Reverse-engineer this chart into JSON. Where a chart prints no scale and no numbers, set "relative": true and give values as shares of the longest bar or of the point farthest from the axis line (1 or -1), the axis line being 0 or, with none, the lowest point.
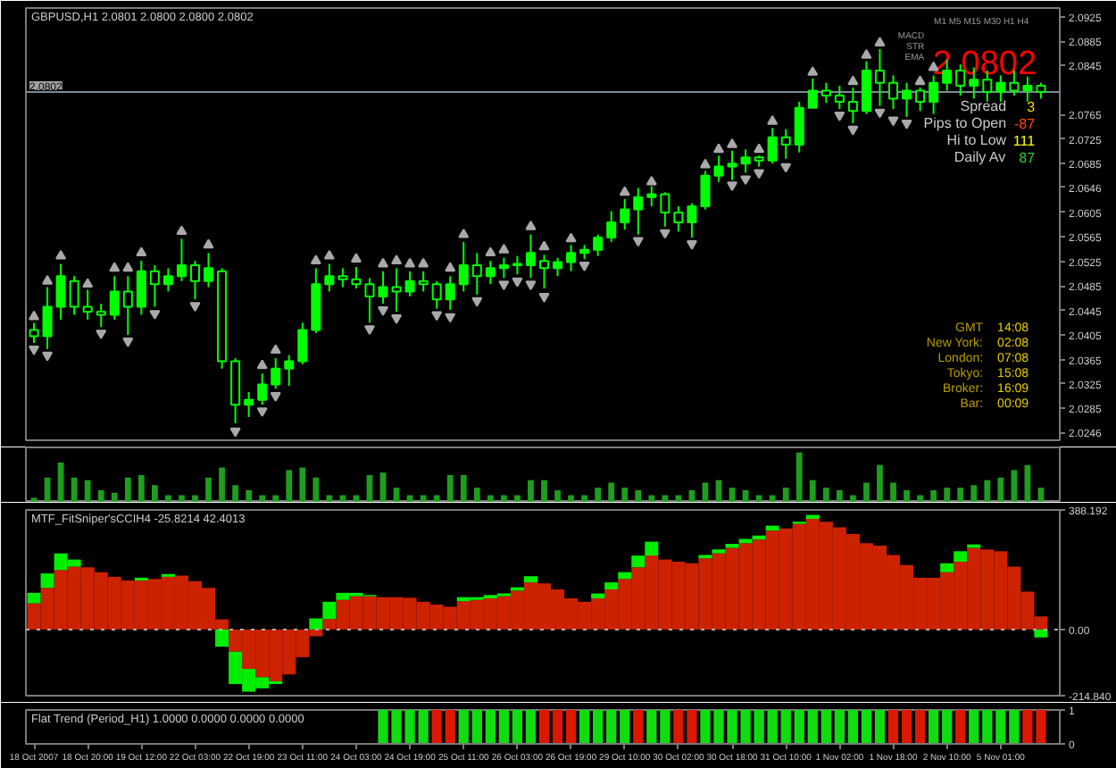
{
  "chart_data": [
    {
      "type": "candlestick",
      "title": "GBPUSD,H1  2.0801 2.0800 2.0800 2.0802",
      "categories": [
        null,
        null,
        null,
        null,
        null,
        null,
        null,
        null,
        null,
        null,
        null,
        null,
        null,
        null,
        null,
        null,
        null,
        null,
        null,
        null,
        null,
        null,
        null,
        null,
        null,
        null,
        null,
        null,
        null,
        null,
        null,
        null,
        null,
        null,
        null,
        null,
        null,
        null,
        null,
        null,
        null,
        null,
        null,
        null,
        null,
        null,
        null,
        null,
        null,
        null,
        null,
        null,
        null,
        null,
        null,
        null,
        null,
        null,
        null,
        null,
        null,
        null,
        null,
        null,
        null,
        null,
        null,
        null,
        null,
        null,
        null,
        null,
        null,
        null,
        null,
        null
      ],
      "ohlc": [
        [
          2.0413,
          2.0425,
          2.0392,
          2.0403
        ],
        [
          2.0403,
          2.0483,
          2.0382,
          2.0451
        ],
        [
          2.0451,
          2.0521,
          2.043,
          2.0501
        ],
        [
          2.0493,
          2.0501,
          2.0438,
          2.0451
        ],
        [
          2.0451,
          2.0479,
          2.043,
          2.0443
        ],
        [
          2.0443,
          2.0456,
          2.0418,
          2.0438
        ],
        [
          2.0438,
          2.0501,
          2.043,
          2.0476
        ],
        [
          2.0476,
          2.0501,
          2.0405,
          2.0451
        ],
        [
          2.0451,
          2.0526,
          2.0438,
          2.0509
        ],
        [
          2.0509,
          2.0519,
          2.0451,
          2.0488
        ],
        [
          2.0488,
          2.0514,
          2.0476,
          2.0501
        ],
        [
          2.0501,
          2.0562,
          2.0493,
          2.0519
        ],
        [
          2.0519,
          2.0526,
          2.0463,
          2.0493
        ],
        [
          2.0493,
          2.0539,
          2.0483,
          2.0514
        ],
        [
          2.0509,
          2.0514,
          2.035,
          2.0362
        ],
        [
          2.0362,
          2.0367,
          2.0261,
          2.0291
        ],
        [
          2.0291,
          2.0312,
          2.0271,
          2.0299
        ],
        [
          2.0299,
          2.0342,
          2.0291,
          2.0324
        ],
        [
          2.0324,
          2.0367,
          2.0317,
          2.035
        ],
        [
          2.035,
          2.0372,
          2.0322,
          2.0362
        ],
        [
          2.0362,
          2.0425,
          2.0357,
          2.0413
        ],
        [
          2.0413,
          2.0514,
          2.0408,
          2.0488
        ],
        [
          2.0488,
          2.0521,
          2.0476,
          2.0501
        ],
        [
          2.0501,
          2.0514,
          2.0483,
          2.0496
        ],
        [
          2.0496,
          2.0516,
          2.0481,
          2.0488
        ],
        [
          2.0488,
          2.0498,
          2.0425,
          2.0468
        ],
        [
          2.0468,
          2.0509,
          2.0456,
          2.0483
        ],
        [
          2.0483,
          2.0514,
          2.0443,
          2.0476
        ],
        [
          2.0476,
          2.0509,
          2.0468,
          2.0493
        ],
        [
          2.0493,
          2.0509,
          2.0476,
          2.0488
        ],
        [
          2.0488,
          2.0493,
          2.0448,
          2.0463
        ],
        [
          2.0463,
          2.0501,
          2.0446,
          2.0488
        ],
        [
          2.0488,
          2.0557,
          2.0476,
          2.0519
        ],
        [
          2.0519,
          2.0539,
          2.0471,
          2.0501
        ],
        [
          2.0501,
          2.0526,
          2.0488,
          2.0514
        ],
        [
          2.0514,
          2.0531,
          2.0498,
          2.0519
        ],
        [
          2.0519,
          2.0534,
          2.0504,
          2.0521
        ],
        [
          2.0519,
          2.0569,
          2.0498,
          2.0539
        ],
        [
          2.0526,
          2.0536,
          2.0481,
          2.0514
        ],
        [
          2.0514,
          2.0531,
          2.0501,
          2.0524
        ],
        [
          2.0524,
          2.0552,
          2.0509,
          2.0539
        ],
        [
          2.0539,
          2.0552,
          2.0529,
          2.0544
        ],
        [
          2.0544,
          2.0569,
          2.0534,
          2.0564
        ],
        [
          2.0564,
          2.0607,
          2.0557,
          2.0589
        ],
        [
          2.0589,
          2.0627,
          2.0577,
          2.061
        ],
        [
          2.061,
          2.0645,
          2.0569,
          2.063
        ],
        [
          2.063,
          2.0648,
          2.0615,
          2.0635
        ],
        [
          2.0635,
          2.0638,
          2.0582,
          2.0605
        ],
        [
          2.0605,
          2.0615,
          2.0574,
          2.0589
        ],
        [
          2.0589,
          2.062,
          2.0564,
          2.0615
        ],
        [
          2.0615,
          2.0673,
          2.061,
          2.0665
        ],
        [
          2.0665,
          2.0698,
          2.0655,
          2.068
        ],
        [
          2.068,
          2.0706,
          2.0658,
          2.0685
        ],
        [
          2.0685,
          2.0708,
          2.067,
          2.0695
        ],
        [
          2.0695,
          2.0698,
          2.068,
          2.069
        ],
        [
          2.069,
          2.0743,
          2.0685,
          2.0728
        ],
        [
          2.0728,
          2.0741,
          2.0693,
          2.0716
        ],
        [
          2.0716,
          2.0786,
          2.0703,
          2.0776
        ],
        [
          2.0776,
          2.0824,
          2.0776,
          2.0804
        ],
        [
          2.0804,
          2.0817,
          2.0784,
          2.0796
        ],
        [
          2.0796,
          2.0812,
          2.0774,
          2.0786
        ],
        [
          2.0786,
          2.0809,
          2.0751,
          2.0771
        ],
        [
          2.0771,
          2.0852,
          2.0766,
          2.0837
        ],
        [
          2.0837,
          2.0872,
          2.0779,
          2.0817
        ],
        [
          2.0817,
          2.0829,
          2.0774,
          2.0791
        ],
        [
          2.0791,
          2.0817,
          2.0761,
          2.0804
        ],
        [
          2.0804,
          2.0809,
          2.0771,
          2.0786
        ],
        [
          2.0786,
          2.0829,
          2.0766,
          2.0817
        ],
        [
          2.0817,
          2.0855,
          2.0804,
          2.0837
        ],
        [
          2.0837,
          2.0847,
          2.0796,
          2.0812
        ],
        [
          2.0812,
          2.0842,
          2.0791,
          2.0822
        ],
        [
          2.0822,
          2.0837,
          2.0786,
          2.0802
        ],
        [
          2.0802,
          2.0829,
          2.0786,
          2.0817
        ],
        [
          2.0817,
          2.0837,
          2.0796,
          2.0804
        ],
        [
          2.0804,
          2.0827,
          2.0786,
          2.0812
        ],
        [
          2.0812,
          2.0817,
          2.0791,
          2.0802
        ]
      ],
      "color": "#00ff00",
      "ylim": [
        2.0233,
        2.0939
      ],
      "yticks": [
        2.0925,
        2.0885,
        2.0845,
        2.0765,
        2.0725,
        2.0685,
        2.0646,
        2.0605,
        2.0565,
        2.0525,
        2.0485,
        2.0445,
        2.0405,
        2.0365,
        2.0325,
        2.0285,
        2.0246
      ],
      "tick_labels": "y",
      "ref_lines": [
        {
          "axis": "y",
          "value": 2.0802,
          "label": "2.0802",
          "color": "#7a8a9a"
        }
      ],
      "series": [
        {
          "type": "scatter",
          "marker": "triangle",
          "color": "#a9a9a9",
          "values": [
            2.0435,
            2.0493,
            2.0534,
            null,
            2.0488,
            null,
            2.0514,
            2.0514,
            2.0539,
            null,
            null,
            2.0574,
            null,
            2.0552,
            null,
            null,
            null,
            2.0355,
            2.038,
            null,
            null,
            2.0526,
            2.0534,
            null,
            2.0529,
            null,
            2.0521,
            2.0526,
            2.0521,
            2.0521,
            null,
            2.0514,
            2.0569,
            null,
            2.0539,
            2.0544,
            null,
            2.0582,
            2.0549,
            null,
            2.0562,
            null,
            null,
            null,
            2.0638,
            null,
            2.0655,
            null,
            null,
            null,
            2.0683,
            2.0708,
            2.0716,
            null,
            2.0708,
            2.0754,
            null,
            null,
            2.0834,
            null,
            null,
            2.0819,
            2.0862,
            2.0882,
            null,
            null,
            2.0819,
            2.0842,
            null,
            null,
            null,
            null,
            null,
            null,
            null,
            null
          ]
        },
        {
          "type": "scatter",
          "color": "#a9a9a9",
          "values": [
            2.0382,
            2.0372,
            null,
            null,
            null,
            2.0408,
            null,
            2.0395,
            null,
            2.044,
            null,
            null,
            2.0453,
            null,
            null,
            2.0248,
            null,
            2.0281,
            2.0306,
            null,
            null,
            null,
            null,
            null,
            null,
            2.0415,
            2.0446,
            2.0433,
            null,
            null,
            2.0438,
            2.0435,
            null,
            2.0461,
            null,
            2.0488,
            2.0493,
            2.0488,
            2.0468,
            null,
            null,
            2.0519,
            null,
            null,
            null,
            2.0559,
            null,
            2.0572,
            null,
            2.0554,
            null,
            null,
            2.065,
            2.066,
            2.067,
            null,
            2.068,
            null,
            null,
            null,
            2.0764,
            2.0741,
            null,
            2.0769,
            2.0756,
            2.0751,
            null,
            null,
            null,
            null,
            null,
            null,
            null,
            null,
            null,
            null
          ]
        }
      ],
      "annotations": [
        "M1 M5 M15 M30 H1 H4",
        "MACD",
        "STR",
        "EMA",
        "2.0802",
        "Spread",
        "3",
        "Pips to Open",
        "-87",
        "Hi to Low",
        "111",
        "Daily Av",
        "87",
        "GMT",
        "14:08",
        "New York:",
        "02:08",
        "London:",
        "07:08",
        "Tokyo:",
        "15:08",
        "Broker:",
        "16:09",
        "Bar:",
        "00:09"
      ]
    },
    {
      "type": "bar",
      "relative": true,
      "tick_labels": false,
      "color": "#1e9e1e",
      "categories": [
        null,
        null,
        null,
        null,
        null,
        null,
        null,
        null,
        null,
        null,
        null,
        null,
        null,
        null,
        null,
        null,
        null,
        null,
        null,
        null,
        null,
        null,
        null,
        null,
        null,
        null,
        null,
        null,
        null,
        null,
        null,
        null,
        null,
        null,
        null,
        null,
        null,
        null,
        null,
        null,
        null,
        null,
        null,
        null,
        null,
        null,
        null,
        null,
        null,
        null,
        null,
        null,
        null,
        null,
        null,
        null,
        null,
        null,
        null,
        null,
        null,
        null,
        null,
        null,
        null,
        null,
        null,
        null,
        null,
        null,
        null,
        null,
        null,
        null,
        null,
        null
      ],
      "values": [
        0.1,
        0.5,
        0.8,
        0.5,
        0.45,
        0.25,
        0.2,
        0.5,
        0.55,
        0.35,
        0.15,
        0.15,
        0.15,
        0.5,
        0.7,
        0.35,
        0.25,
        0.15,
        0.15,
        0.65,
        0.7,
        0.5,
        0.15,
        0.15,
        0.15,
        0.55,
        0.6,
        0.3,
        0.15,
        0.15,
        0.15,
        0.55,
        0.55,
        0.3,
        0.15,
        0.15,
        0.15,
        0.45,
        0.45,
        0.25,
        0.15,
        0.15,
        0.3,
        0.4,
        0.3,
        0.25,
        0.15,
        0.15,
        0.15,
        0.25,
        0.4,
        0.45,
        0.3,
        0.25,
        0.15,
        0.15,
        0.3,
        1,
        0.45,
        0.3,
        0.25,
        0.15,
        0.4,
        0.75,
        0.4,
        0.25,
        0.15,
        0.25,
        0.3,
        0.3,
        0.35,
        0.45,
        0.5,
        0.65,
        0.75,
        0.3
      ]
    },
    {
      "type": "bar",
      "stacked": true,
      "title": "MTF_FitSniper'sCCIH4  -25.8214 42.4013",
      "tick_labels": "y",
      "categories": [
        null,
        null,
        null,
        null,
        null,
        null,
        null,
        null,
        null,
        null,
        null,
        null,
        null,
        null,
        null,
        null,
        null,
        null,
        null,
        null,
        null,
        null,
        null,
        null,
        null,
        null,
        null,
        null,
        null,
        null,
        null,
        null,
        null,
        null,
        null,
        null,
        null,
        null,
        null,
        null,
        null,
        null,
        null,
        null,
        null,
        null,
        null,
        null,
        null,
        null,
        null,
        null,
        null,
        null,
        null,
        null,
        null,
        null,
        null,
        null,
        null,
        null,
        null,
        null,
        null,
        null,
        null,
        null,
        null,
        null,
        null,
        null,
        null,
        null,
        null,
        null
      ],
      "series": [
        {
          "color": "#cc2200",
          "values": [
            85,
            135,
            193,
            204,
            202,
            186,
            171,
            159,
            159,
            164,
            171,
            175,
            157,
            135,
            33,
            -72,
            -128,
            -155,
            -168,
            -146,
            -90,
            -22,
            34,
            96,
            108,
            108,
            105,
            105,
            103,
            90,
            81,
            74,
            92,
            96,
            101,
            108,
            126,
            153,
            150,
            130,
            101,
            90,
            101,
            130,
            164,
            202,
            240,
            227,
            220,
            215,
            231,
            247,
            265,
            280,
            292,
            321,
            328,
            343,
            359,
            350,
            332,
            310,
            280,
            272,
            242,
            209,
            168,
            168,
            186,
            220,
            265,
            260,
            254,
            204,
            123,
            42.4013
          ]
        },
        {
          "color": "#00ee00",
          "values": [
            34,
            47,
            54,
            23,
            null,
            null,
            null,
            null,
            9,
            null,
            9,
            null,
            null,
            null,
            -56,
            -105,
            -74,
            -36,
            -9,
            null,
            null,
            36,
            56,
            23,
            11,
            4,
            null,
            null,
            null,
            null,
            null,
            null,
            13,
            9,
            11,
            9,
            11,
            20,
            null,
            null,
            null,
            null,
            16,
            23,
            22,
            38,
            45,
            null,
            null,
            null,
            11,
            13,
            13,
            14,
            13,
            16,
            null,
            7,
            13,
            null,
            null,
            null,
            null,
            null,
            null,
            null,
            null,
            null,
            29,
            34,
            11,
            null,
            null,
            null,
            null,
            -25.8214
          ]
        }
      ],
      "ylim": [
        -214.84,
        388.192
      ],
      "yticks": [
        388.192,
        {
          "value": 0,
          "label": "0.00"
        },
        {
          "value": -214.84,
          "label": "-214.840"
        }
      ],
      "ref_lines": [
        {
          "axis": "y",
          "value": 0,
          "color": "#b0b0b0",
          "line_style": "dotted"
        }
      ]
    },
    {
      "type": "bar",
      "title": "Flat Trend (Period_H1) 1.0000 0.0000 0.0000 0.0000",
      "categories": [
        "18 Oct 2007",
        null,
        null,
        null,
        "18 Oct 20:00",
        null,
        null,
        null,
        "19 Oct 12:00",
        null,
        null,
        null,
        "22 Oct 03:00",
        null,
        null,
        null,
        "22 Oct 19:00",
        null,
        null,
        null,
        "23 Oct 11:00",
        null,
        null,
        null,
        "24 Oct 03:00",
        null,
        null,
        null,
        "24 Oct 19:00",
        null,
        null,
        null,
        "25 Oct 11:00",
        null,
        null,
        null,
        "26 Oct 03:00",
        null,
        null,
        null,
        "26 Oct 19:00",
        null,
        null,
        null,
        "29 Oct 10:00",
        null,
        null,
        null,
        "30 Oct 02:00",
        null,
        null,
        null,
        "30 Oct 18:00",
        null,
        null,
        null,
        "31 Oct 10:00",
        null,
        null,
        null,
        "1 Nov 02:00",
        null,
        null,
        null,
        "1 Nov 18:00",
        null,
        null,
        null,
        "2 Nov 10:00",
        null,
        null,
        null,
        "5 Nov 01:00",
        null,
        null,
        null
      ],
      "values": [
        null,
        null,
        null,
        null,
        null,
        null,
        null,
        null,
        null,
        null,
        null,
        null,
        null,
        null,
        null,
        null,
        null,
        null,
        null,
        null,
        null,
        null,
        null,
        null,
        null,
        null,
        1,
        1,
        1,
        1,
        1,
        1,
        1,
        1,
        1,
        1,
        1,
        1,
        1,
        1,
        1,
        1,
        1,
        1,
        1,
        1,
        1,
        1,
        1,
        1,
        1,
        1,
        1,
        1,
        1,
        1,
        1,
        1,
        1,
        1,
        1,
        1,
        1,
        1,
        1,
        1,
        1,
        1,
        1,
        1,
        1,
        1,
        1,
        1,
        1,
        1
      ],
      "colors": [
        null,
        null,
        null,
        null,
        null,
        null,
        null,
        null,
        null,
        null,
        null,
        null,
        null,
        null,
        null,
        null,
        null,
        null,
        null,
        null,
        null,
        null,
        null,
        null,
        null,
        null,
        "#10dd10",
        "#10dd10",
        "#10dd10",
        "#10dd10",
        "#dd1800",
        "#dd1800",
        "#10dd10",
        "#10dd10",
        "#10dd10",
        "#10dd10",
        "#10dd10",
        "#10dd10",
        "#dd1800",
        "#dd1800",
        "#dd1800",
        "#10dd10",
        "#10dd10",
        "#10dd10",
        "#10dd10",
        "#dd1800",
        "#10dd10",
        "#10dd10",
        "#dd1800",
        "#dd1800",
        "#10dd10",
        "#10dd10",
        "#10dd10",
        "#10dd10",
        "#10dd10",
        "#10dd10",
        "#10dd10",
        "#10dd10",
        "#10dd10",
        "#10dd10",
        "#10dd10",
        "#10dd10",
        "#10dd10",
        "#10dd10",
        "#dd1800",
        "#dd1800",
        "#dd1800",
        "#10dd10",
        "#10dd10",
        "#dd1800",
        "#10dd10",
        "#10dd10",
        "#10dd10",
        "#10dd10",
        "#dd1800",
        "#dd1800"
      ],
      "ylim": [
        0,
        1
      ],
      "yticks": [
        0,
        1
      ]
    }
  ]
}
